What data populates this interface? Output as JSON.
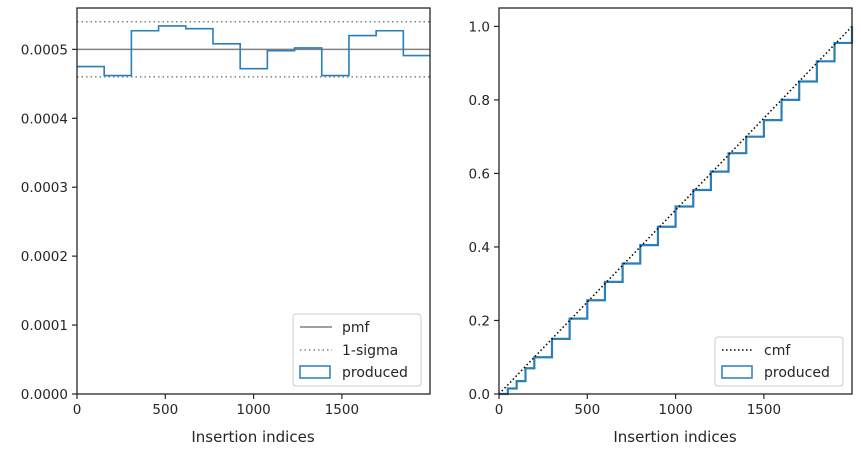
{
  "chart_data": [
    {
      "type": "step",
      "xlabel": "Insertion indices",
      "ylabel": "",
      "xlim": [
        0,
        1999
      ],
      "ylim": [
        0,
        0.00056
      ],
      "xticks": [
        "0",
        "500",
        "1000",
        "1500"
      ],
      "yticks": [
        "0.0000",
        "0.0001",
        "0.0002",
        "0.0003",
        "0.0004",
        "0.0005"
      ],
      "pmf": 0.0005,
      "sigma_band": [
        0.00046,
        0.00054
      ],
      "bin_edges": [
        0,
        154,
        308,
        462,
        616,
        770,
        924,
        1078,
        1232,
        1386,
        1540,
        1694,
        1848,
        1999
      ],
      "produced": [
        0.000475,
        0.000462,
        0.000527,
        0.000534,
        0.00053,
        0.000508,
        0.000472,
        0.000498,
        0.000502,
        0.000462,
        0.00052,
        0.000527,
        0.000491
      ],
      "legend": {
        "placement": "lower-right",
        "entries": [
          "pmf",
          "1-sigma",
          "produced"
        ]
      }
    },
    {
      "type": "step",
      "xlabel": "Insertion indices",
      "ylabel": "",
      "xlim": [
        0,
        1999
      ],
      "ylim": [
        0,
        1.05
      ],
      "xticks": [
        "0",
        "500",
        "1000",
        "1500"
      ],
      "yticks": [
        "0.0",
        "0.2",
        "0.4",
        "0.6",
        "0.8",
        "1.0"
      ],
      "cmf_x": [
        0,
        1999
      ],
      "cmf_y": [
        0,
        1.0
      ],
      "produced_x": [
        0,
        50,
        100,
        150,
        200,
        300,
        400,
        500,
        600,
        700,
        800,
        900,
        1000,
        1100,
        1200,
        1300,
        1400,
        1500,
        1600,
        1700,
        1800,
        1900,
        1999
      ],
      "produced_y": [
        0,
        0.015,
        0.035,
        0.07,
        0.1,
        0.15,
        0.205,
        0.255,
        0.305,
        0.355,
        0.405,
        0.455,
        0.51,
        0.555,
        0.605,
        0.655,
        0.7,
        0.745,
        0.8,
        0.85,
        0.905,
        0.955,
        1.0
      ],
      "legend": {
        "placement": "lower-right",
        "entries": [
          "cmf",
          "produced"
        ]
      }
    }
  ],
  "colors": {
    "produced": "#2a7fb8",
    "pmf": "#808080",
    "sigma": "#808080",
    "cmf": "#000000",
    "axes": "#262626"
  }
}
